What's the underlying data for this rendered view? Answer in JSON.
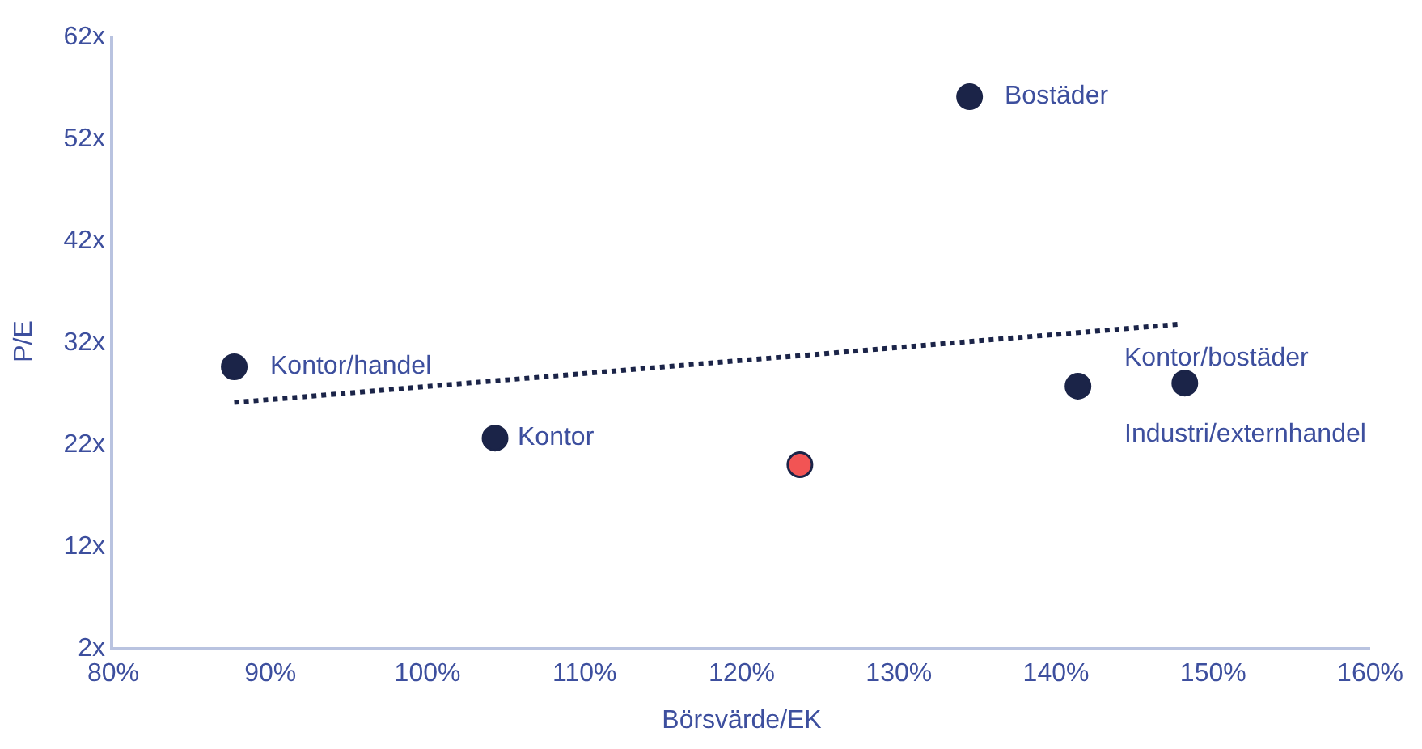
{
  "chart_data": {
    "type": "scatter",
    "xlabel": "Börsvärde/EK",
    "ylabel": "P/E",
    "xlim": [
      80,
      160
    ],
    "ylim": [
      2,
      62
    ],
    "xticks": [
      {
        "value": 80,
        "label": "80%"
      },
      {
        "value": 90,
        "label": "90%"
      },
      {
        "value": 100,
        "label": "100%"
      },
      {
        "value": 110,
        "label": "110%"
      },
      {
        "value": 120,
        "label": "120%"
      },
      {
        "value": 130,
        "label": "130%"
      },
      {
        "value": 140,
        "label": "140%"
      },
      {
        "value": 150,
        "label": "150%"
      },
      {
        "value": 160,
        "label": "160%"
      }
    ],
    "yticks": [
      {
        "value": 2,
        "label": "2x"
      },
      {
        "value": 12,
        "label": "12x"
      },
      {
        "value": 22,
        "label": "22x"
      },
      {
        "value": 32,
        "label": "32x"
      },
      {
        "value": 42,
        "label": "42x"
      },
      {
        "value": 52,
        "label": "52x"
      },
      {
        "value": 62,
        "label": "62x"
      }
    ],
    "series": [
      {
        "marker": "circle",
        "x": [
          134.5,
          87.7,
          104.3,
          123.7,
          141.4,
          148.2
        ],
        "values": [
          56,
          29.5,
          22.5,
          19.9,
          27.6,
          27.9
        ],
        "colors": [
          "#1b2448",
          "#1b2448",
          "#1b2448",
          "#f25454",
          "#1b2448",
          "#1b2448"
        ]
      },
      {
        "type": "line",
        "x": [
          87.7,
          148
        ],
        "values": [
          26,
          33.7
        ],
        "color": "#1b2448",
        "line_style": "dotted"
      }
    ],
    "annotations": [
      {
        "text": "Bostäder",
        "x": 134.5,
        "y": 56
      },
      {
        "text": "Kontor/handel",
        "x": 87.7,
        "y": 29.5
      },
      {
        "text": "Kontor",
        "x": 104.3,
        "y": 22.5
      },
      {
        "text": "Kontor/bostäder",
        "x": 141.4,
        "y": 27.6
      },
      {
        "text": "Industri/externhandel",
        "x": 148.2,
        "y": 27.9
      }
    ]
  }
}
